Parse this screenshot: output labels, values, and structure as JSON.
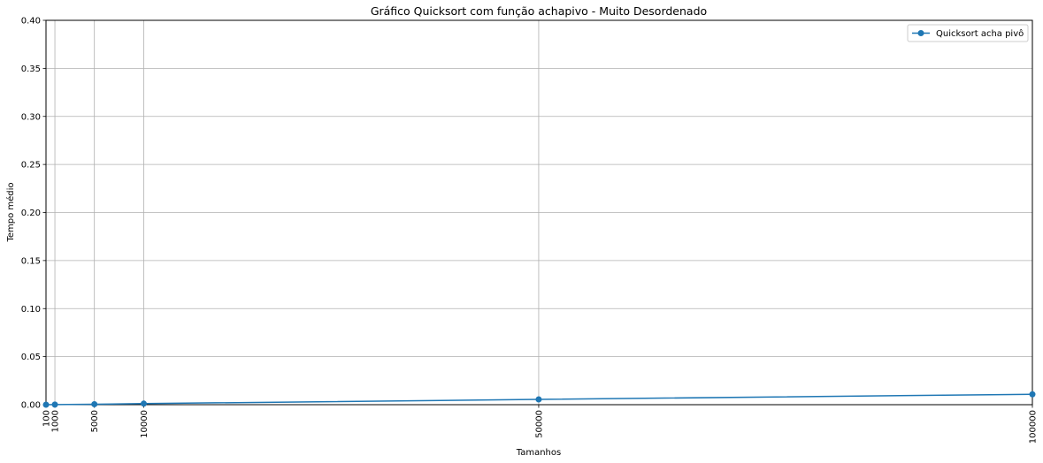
{
  "chart_data": {
    "type": "line",
    "title": "Gráfico Quicksort com função achapivo - Muito Desordenado",
    "xlabel": "Tamanhos",
    "ylabel": "Tempo médio",
    "x": [
      100,
      1000,
      5000,
      10000,
      50000,
      100000
    ],
    "x_tick_labels": [
      "100",
      "1000",
      "5000",
      "10000",
      "50000",
      "100000"
    ],
    "xlim": [
      100,
      100000
    ],
    "ylim": [
      0,
      0.4
    ],
    "y_ticks": [
      0.0,
      0.05,
      0.1,
      0.15,
      0.2,
      0.25,
      0.3,
      0.35,
      0.4
    ],
    "y_tick_labels": [
      "0.00",
      "0.05",
      "0.10",
      "0.15",
      "0.20",
      "0.25",
      "0.30",
      "0.35",
      "0.40"
    ],
    "grid": true,
    "legend_position": "top-right",
    "series": [
      {
        "name": "Quicksort acha pivô",
        "color": "#1f77b4",
        "marker": "circle",
        "values": [
          2e-05,
          0.0001,
          0.0005,
          0.0011,
          0.0055,
          0.0108
        ]
      }
    ]
  }
}
